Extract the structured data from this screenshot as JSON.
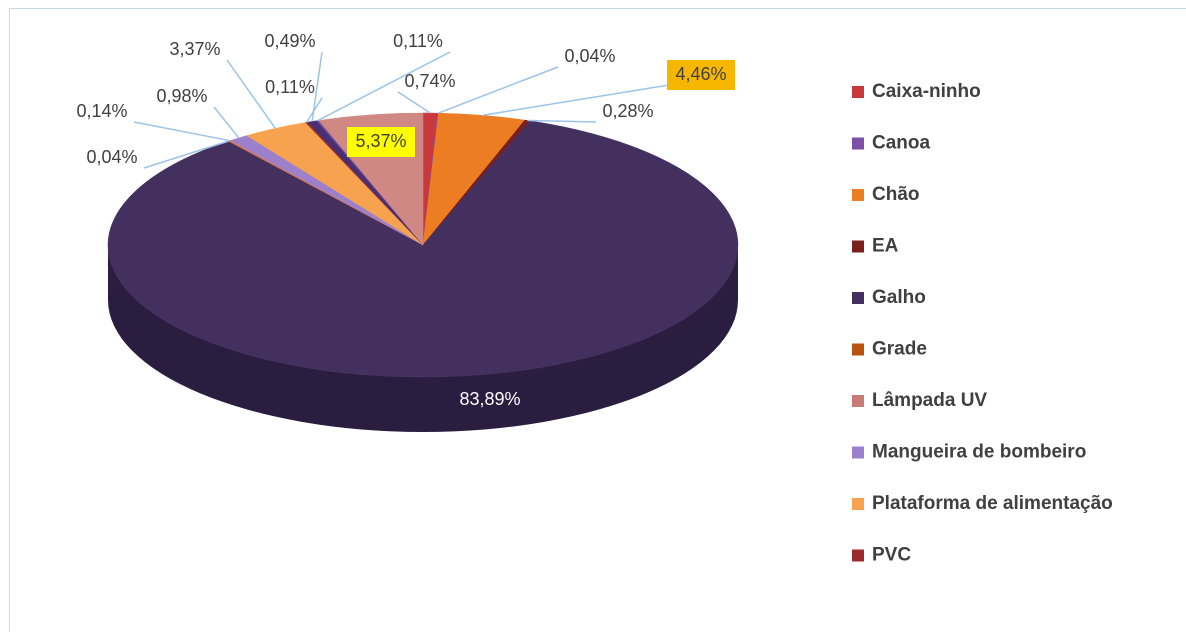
{
  "chart_data": {
    "type": "pie",
    "categories": [
      "Caixa-ninho",
      "Canoa",
      "Chão",
      "EA",
      "Galho",
      "Grade",
      "Lâmpada UV",
      "Mangueira de bombeiro",
      "Plataforma de alimentação",
      "PVC",
      null,
      null,
      null
    ],
    "values": [
      0.74,
      0.04,
      4.46,
      0.28,
      83.89,
      0.04,
      0.14,
      0.98,
      3.37,
      0.11,
      0.49,
      0.11,
      5.37
    ],
    "value_labels": [
      "0,74%",
      "0,04%",
      "4,46%",
      "0,28%",
      "83,89%",
      "0,04%",
      "0,14%",
      "0,98%",
      "3,37%",
      "0,11%",
      "0,49%",
      "0,11%",
      "5,37%"
    ],
    "colors": [
      "#c8383c",
      "#7d4fa8",
      "#ec7d22",
      "#7b1e1e",
      "#43305f",
      "#b9520f",
      "#c97b78",
      "#9d80cc",
      "#f6a24e",
      "#9b2a2a",
      "#4a2f72",
      "#6a4b9a",
      "#cf8884"
    ],
    "legend": "right"
  }
}
